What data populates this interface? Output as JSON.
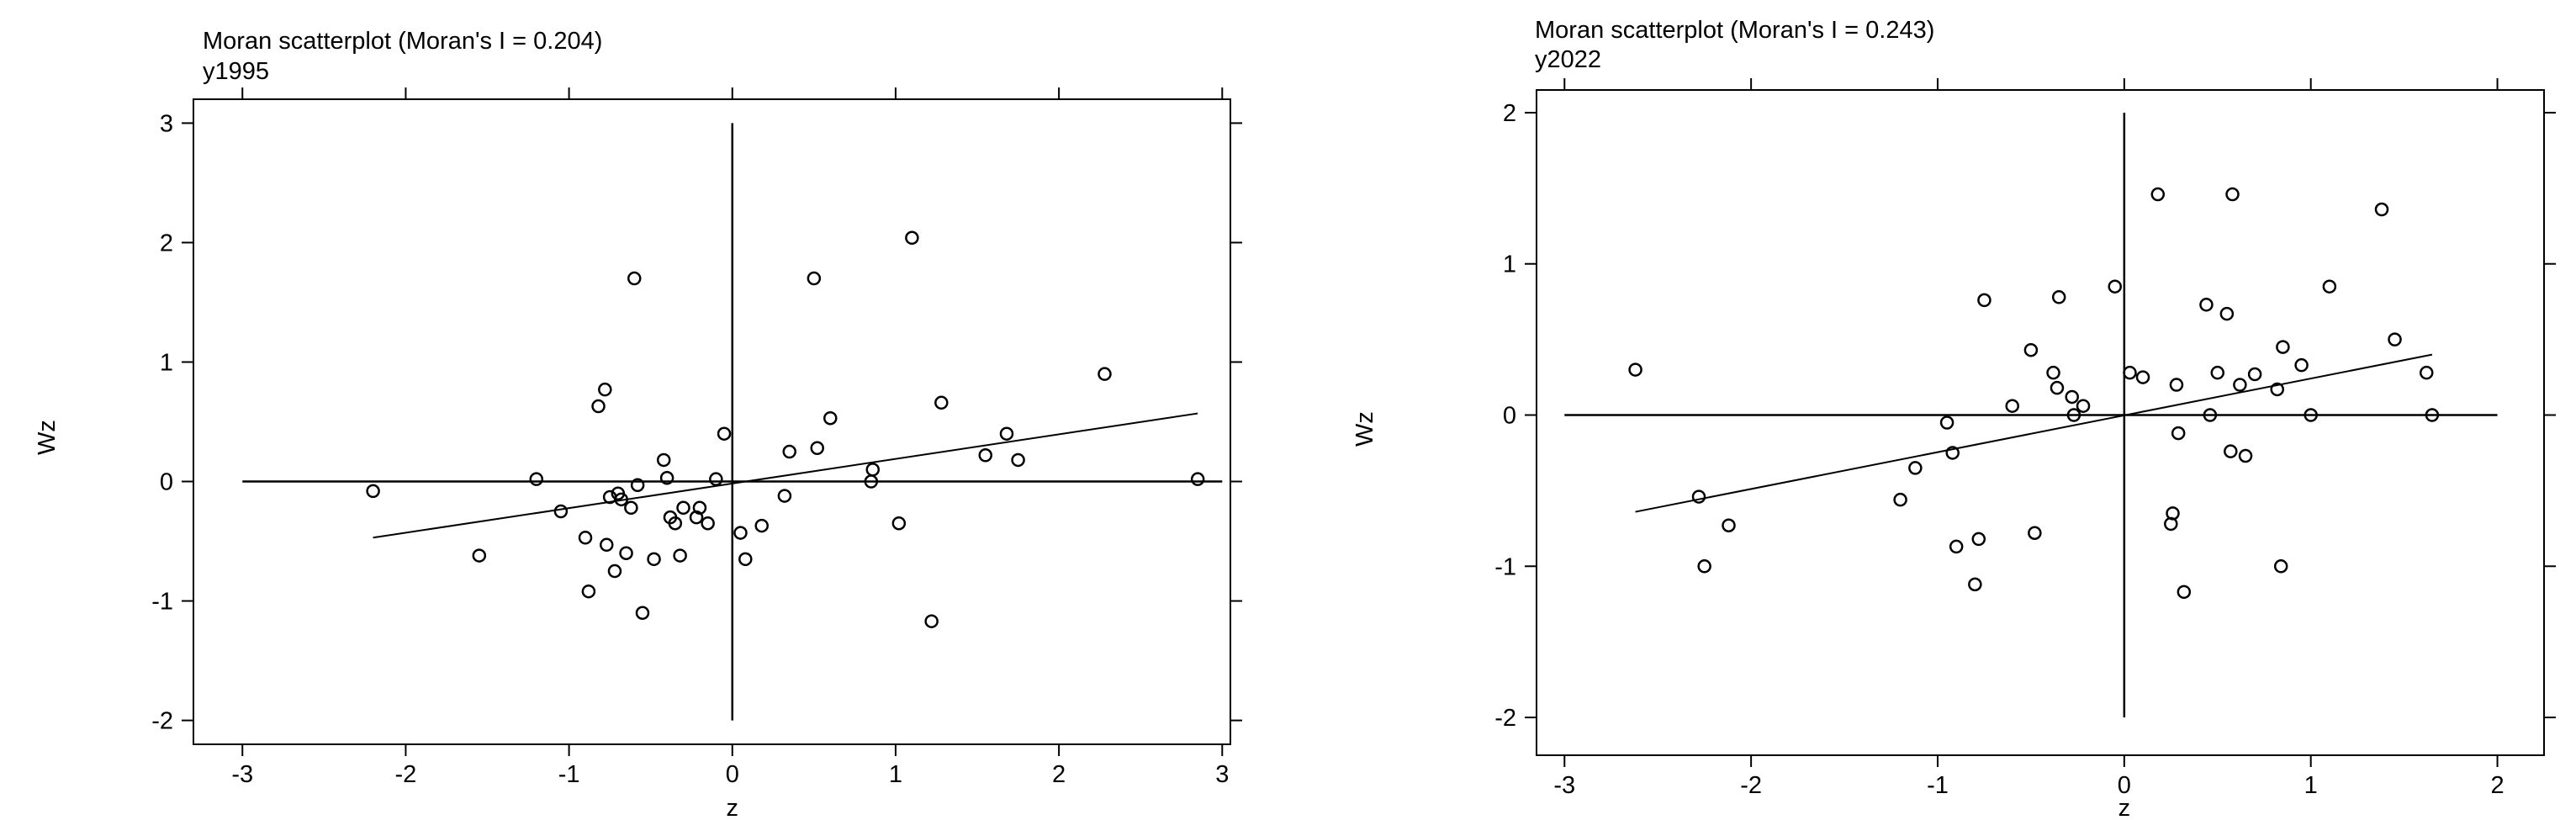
{
  "chart_data": [
    {
      "type": "scatter",
      "title": "Moran scatterplot (Moran's I = 0.204)",
      "subtitle": "y1995",
      "xlabel": "z",
      "ylabel": "Wz",
      "xlim": [
        -3.3,
        3.05
      ],
      "ylim": [
        -2.2,
        3.2
      ],
      "xticks": [
        -3,
        -2,
        -1,
        0,
        1,
        2,
        3
      ],
      "yticks": [
        -2,
        -1,
        0,
        1,
        2,
        3
      ],
      "crosshair": {
        "x": [
          -3,
          3
        ],
        "y": [
          -2,
          3
        ]
      },
      "fit_line": {
        "x": [
          -2.2,
          2.85
        ],
        "y": [
          -0.47,
          0.57
        ]
      },
      "x": [
        -2.2,
        -1.55,
        -1.2,
        -1.05,
        -0.9,
        -0.88,
        -0.82,
        -0.78,
        -0.77,
        -0.75,
        -0.72,
        -0.7,
        -0.68,
        -0.65,
        -0.62,
        -0.6,
        -0.58,
        -0.55,
        -0.48,
        -0.42,
        -0.4,
        -0.38,
        -0.35,
        -0.32,
        -0.3,
        -0.22,
        -0.2,
        -0.15,
        -0.1,
        -0.05,
        0.05,
        0.08,
        0.18,
        0.32,
        0.35,
        0.5,
        0.52,
        0.6,
        0.85,
        0.86,
        1.02,
        1.1,
        1.22,
        1.28,
        1.55,
        1.68,
        1.75,
        2.28,
        2.85
      ],
      "y": [
        -0.08,
        -0.62,
        0.02,
        -0.25,
        -0.47,
        -0.92,
        0.63,
        0.77,
        -0.53,
        -0.13,
        -0.75,
        -0.1,
        -0.15,
        -0.6,
        -0.22,
        1.7,
        -0.03,
        -1.1,
        -0.65,
        0.18,
        0.03,
        -0.3,
        -0.35,
        -0.62,
        -0.22,
        -0.3,
        -0.22,
        -0.35,
        0.02,
        0.4,
        -0.43,
        -0.65,
        -0.37,
        -0.12,
        0.25,
        1.7,
        0.28,
        0.53,
        0.0,
        0.1,
        -0.35,
        2.04,
        -1.17,
        0.66,
        0.22,
        0.4,
        0.18,
        0.9,
        0.02
      ]
    },
    {
      "type": "scatter",
      "title": "Moran scatterplot (Moran's I = 0.243)",
      "subtitle": "y2022",
      "xlabel": "z",
      "ylabel": "Wz",
      "xlim": [
        -3.15,
        2.25
      ],
      "ylim": [
        -2.25,
        2.15
      ],
      "xticks": [
        -3,
        -2,
        -1,
        0,
        1,
        2
      ],
      "yticks": [
        -2,
        -1,
        0,
        1,
        2
      ],
      "crosshair": {
        "x": [
          -3,
          2
        ],
        "y": [
          -2,
          2
        ]
      },
      "fit_line": {
        "x": [
          -2.62,
          1.65
        ],
        "y": [
          -0.64,
          0.4
        ]
      },
      "x": [
        -2.62,
        -2.28,
        -2.25,
        -2.12,
        -1.2,
        -1.12,
        -0.95,
        -0.92,
        -0.9,
        -0.8,
        -0.78,
        -0.75,
        -0.6,
        -0.5,
        -0.48,
        -0.38,
        -0.36,
        -0.35,
        -0.28,
        -0.27,
        -0.22,
        -0.05,
        0.03,
        0.1,
        0.18,
        0.25,
        0.26,
        0.28,
        0.29,
        0.32,
        0.44,
        0.46,
        0.5,
        0.55,
        0.57,
        0.58,
        0.62,
        0.65,
        0.7,
        0.82,
        0.84,
        0.85,
        0.95,
        1.0,
        1.1,
        1.38,
        1.45,
        1.62,
        1.65
      ],
      "y": [
        0.3,
        -0.54,
        -1.0,
        -0.73,
        -0.56,
        -0.35,
        -0.05,
        -0.25,
        -0.87,
        -1.12,
        -0.82,
        0.76,
        0.06,
        0.43,
        -0.78,
        0.28,
        0.18,
        0.78,
        0.12,
        0.0,
        0.06,
        0.85,
        0.28,
        0.25,
        1.46,
        -0.72,
        -0.65,
        0.2,
        -0.12,
        -1.17,
        0.73,
        0.0,
        0.28,
        0.67,
        -0.24,
        1.46,
        0.2,
        -0.27,
        0.27,
        0.17,
        -1.0,
        0.45,
        0.33,
        0.0,
        0.85,
        1.36,
        0.5,
        0.28,
        0.0
      ]
    }
  ]
}
